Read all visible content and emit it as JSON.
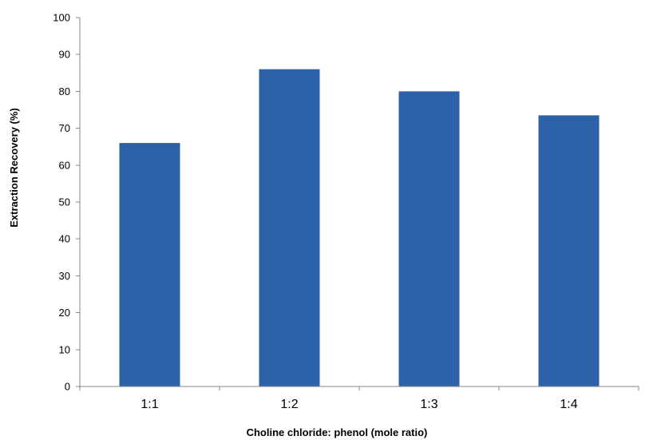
{
  "chart_data": {
    "type": "bar",
    "title": "",
    "xlabel": "Choline chloride: phenol (mole ratio)",
    "ylabel": "Extraction Recovery (%)",
    "categories": [
      "1:1",
      "1:2",
      "1:3",
      "1:4"
    ],
    "values": [
      66,
      86,
      80,
      73.5
    ],
    "ylim": [
      0,
      100
    ],
    "yticks": [
      0,
      10,
      20,
      30,
      40,
      50,
      60,
      70,
      80,
      90,
      100
    ],
    "grid": false,
    "legend": "none",
    "bar_color": "#2E62A8",
    "axis_color": "#868686"
  }
}
